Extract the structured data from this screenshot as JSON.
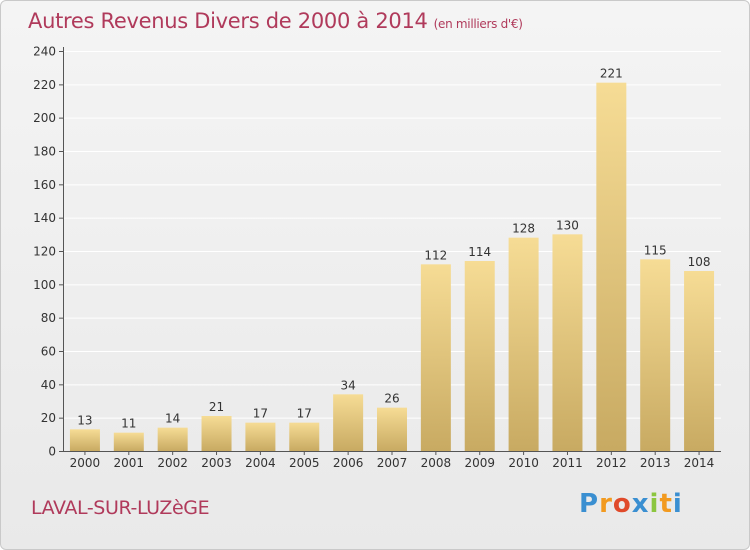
{
  "title": {
    "main": "Autres Revenus Divers de 2000 à 2014",
    "unit": "(en milliers d'€)"
  },
  "commune": "LAVAL-SUR-LUZèGE",
  "logo": {
    "letters": [
      "P",
      "r",
      "o",
      "x",
      "i",
      "t",
      "i"
    ],
    "colors": [
      "#3a8fd1",
      "#f29a1f",
      "#e04a2a",
      "#3a8fd1",
      "#8cc63f",
      "#f29a1f",
      "#3a8fd1"
    ]
  },
  "colors": {
    "title": "#b03a5b",
    "bar_top": "#f6dc95",
    "bar_bottom": "#c8aa62",
    "grid": "#ffffff",
    "background": "#e9e9e9"
  },
  "chart_data": {
    "type": "bar",
    "title": "Autres Revenus Divers de 2000 à 2014",
    "subtitle": "(en milliers d'€)",
    "xlabel": "",
    "ylabel": "",
    "ylim": [
      0,
      240
    ],
    "yticks": [
      0,
      20,
      40,
      60,
      80,
      100,
      120,
      140,
      160,
      180,
      200,
      220,
      240
    ],
    "grid": true,
    "categories": [
      "2000",
      "2001",
      "2002",
      "2003",
      "2004",
      "2005",
      "2006",
      "2007",
      "2008",
      "2009",
      "2010",
      "2011",
      "2012",
      "2013",
      "2014"
    ],
    "values": [
      13,
      11,
      14,
      21,
      17,
      17,
      34,
      26,
      112,
      114,
      128,
      130,
      221,
      115,
      108
    ]
  }
}
